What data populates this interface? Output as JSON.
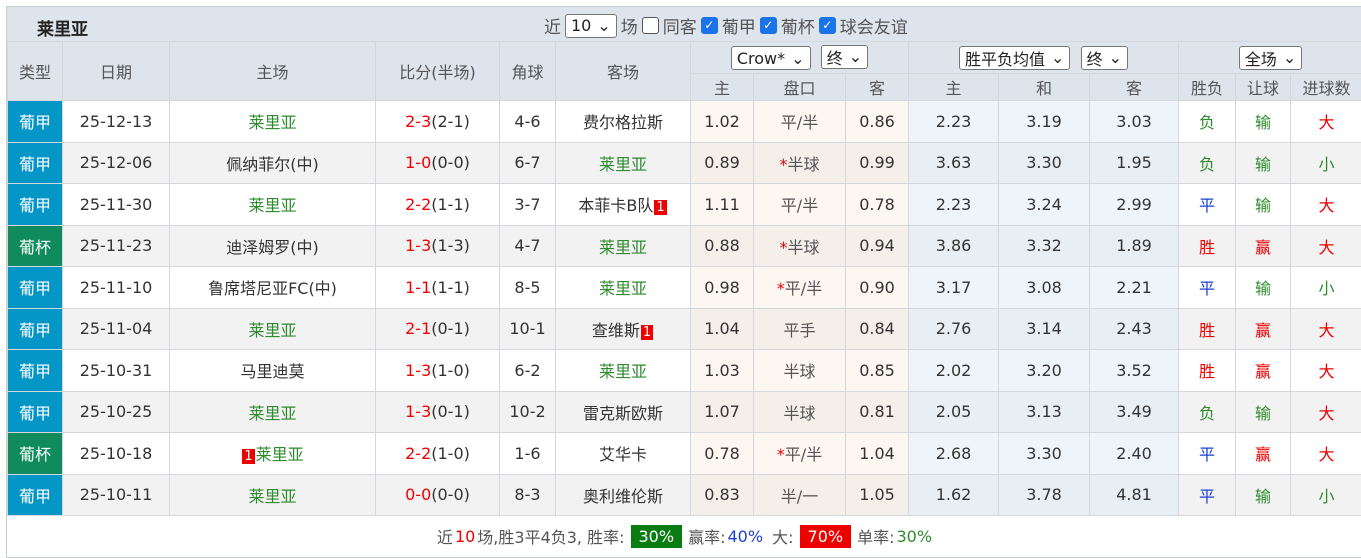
{
  "title": "莱里亚",
  "filters": {
    "near": "近",
    "count": "10",
    "games": "场",
    "same_away": "同客",
    "checks": [
      "葡甲",
      "葡杯",
      "球会友谊"
    ]
  },
  "headers": {
    "type": "类型",
    "date": "日期",
    "home": "主场",
    "score": "比分(半场)",
    "corner": "角球",
    "away": "客场",
    "company": "Crow*",
    "company_stage": "终",
    "avg": "胜平负均值",
    "avg_stage": "终",
    "period": "全场",
    "sub": [
      "主",
      "盘口",
      "客",
      "主",
      "和",
      "客",
      "胜负",
      "让球",
      "进球数"
    ]
  },
  "colors": {
    "league": "#0596c8",
    "cup": "#0f8b5d",
    "win": "#e00",
    "draw": "#1a3fd6",
    "loss": "#2e8b2e"
  },
  "rows": [
    {
      "type": "葡甲",
      "cup": false,
      "date": "25-12-13",
      "home": "莱里亚",
      "home_rc": "",
      "score": "2-3",
      "half": "(2-1)",
      "corner": "4-6",
      "away": "费尔格拉斯",
      "away_rc": "",
      "h": "1.02",
      "line": "平/半",
      "star": "",
      "a": "0.86",
      "w": "2.23",
      "d": "3.19",
      "l": "3.03",
      "res": "负",
      "hc": "输",
      "ou": "大"
    },
    {
      "type": "葡甲",
      "cup": false,
      "date": "25-12-06",
      "home": "佩纳菲尔(中)",
      "home_rc": "",
      "score": "1-0",
      "half": "(0-0)",
      "corner": "6-7",
      "away": "莱里亚",
      "away_rc": "",
      "h": "0.89",
      "line": "半球",
      "star": "*",
      "a": "0.99",
      "w": "3.63",
      "d": "3.30",
      "l": "1.95",
      "res": "负",
      "hc": "输",
      "ou": "小"
    },
    {
      "type": "葡甲",
      "cup": false,
      "date": "25-11-30",
      "home": "莱里亚",
      "home_rc": "",
      "score": "2-2",
      "half": "(1-1)",
      "corner": "3-7",
      "away": "本菲卡B队",
      "away_rc": "1",
      "h": "1.11",
      "line": "平/半",
      "star": "",
      "a": "0.78",
      "w": "2.23",
      "d": "3.24",
      "l": "2.99",
      "res": "平",
      "hc": "输",
      "ou": "大"
    },
    {
      "type": "葡杯",
      "cup": true,
      "date": "25-11-23",
      "home": "迪泽姆罗(中)",
      "home_rc": "",
      "score": "1-3",
      "half": "(1-3)",
      "corner": "4-7",
      "away": "莱里亚",
      "away_rc": "",
      "h": "0.88",
      "line": "半球",
      "star": "*",
      "a": "0.94",
      "w": "3.86",
      "d": "3.32",
      "l": "1.89",
      "res": "胜",
      "hc": "赢",
      "ou": "大"
    },
    {
      "type": "葡甲",
      "cup": false,
      "date": "25-11-10",
      "home": "鲁席塔尼亚FC(中)",
      "home_rc": "",
      "score": "1-1",
      "half": "(1-1)",
      "corner": "8-5",
      "away": "莱里亚",
      "away_rc": "",
      "h": "0.98",
      "line": "平/半",
      "star": "*",
      "a": "0.90",
      "w": "3.17",
      "d": "3.08",
      "l": "2.21",
      "res": "平",
      "hc": "输",
      "ou": "小"
    },
    {
      "type": "葡甲",
      "cup": false,
      "date": "25-11-04",
      "home": "莱里亚",
      "home_rc": "",
      "score": "2-1",
      "half": "(0-1)",
      "corner": "10-1",
      "away": "查维斯",
      "away_rc": "1",
      "h": "1.04",
      "line": "平手",
      "star": "",
      "a": "0.84",
      "w": "2.76",
      "d": "3.14",
      "l": "2.43",
      "res": "胜",
      "hc": "赢",
      "ou": "大"
    },
    {
      "type": "葡甲",
      "cup": false,
      "date": "25-10-31",
      "home": "马里迪莫",
      "home_rc": "",
      "score": "1-3",
      "half": "(1-0)",
      "corner": "6-2",
      "away": "莱里亚",
      "away_rc": "",
      "h": "1.03",
      "line": "半球",
      "star": "",
      "a": "0.85",
      "w": "2.02",
      "d": "3.20",
      "l": "3.52",
      "res": "胜",
      "hc": "赢",
      "ou": "大"
    },
    {
      "type": "葡甲",
      "cup": false,
      "date": "25-10-25",
      "home": "莱里亚",
      "home_rc": "",
      "score": "1-3",
      "half": "(0-1)",
      "corner": "10-2",
      "away": "雷克斯欧斯",
      "away_rc": "",
      "h": "1.07",
      "line": "半球",
      "star": "",
      "a": "0.81",
      "w": "2.05",
      "d": "3.13",
      "l": "3.49",
      "res": "负",
      "hc": "输",
      "ou": "大"
    },
    {
      "type": "葡杯",
      "cup": true,
      "date": "25-10-18",
      "home": "莱里亚",
      "home_rc": "1",
      "score": "2-2",
      "half": "(1-0)",
      "corner": "1-6",
      "away": "艾华卡",
      "away_rc": "",
      "h": "0.78",
      "line": "平/半",
      "star": "*",
      "a": "1.04",
      "w": "2.68",
      "d": "3.30",
      "l": "2.40",
      "res": "平",
      "hc": "赢",
      "ou": "大"
    },
    {
      "type": "葡甲",
      "cup": false,
      "date": "25-10-11",
      "home": "莱里亚",
      "home_rc": "",
      "score": "0-0",
      "half": "(0-0)",
      "corner": "8-3",
      "away": "奥利维伦斯",
      "away_rc": "",
      "h": "0.83",
      "line": "半/一",
      "star": "",
      "a": "1.05",
      "w": "1.62",
      "d": "3.78",
      "l": "4.81",
      "res": "平",
      "hc": "输",
      "ou": "小"
    }
  ],
  "summary": {
    "p1": "近",
    "n": "10",
    "p2": "场,胜3平4负3, 胜率:",
    "win_rate": "30%",
    "p3": "赢率:",
    "hc_rate": "40%",
    "p4": "大:",
    "over_rate": "70%",
    "p5": "单率:",
    "odd_rate": "30%"
  }
}
